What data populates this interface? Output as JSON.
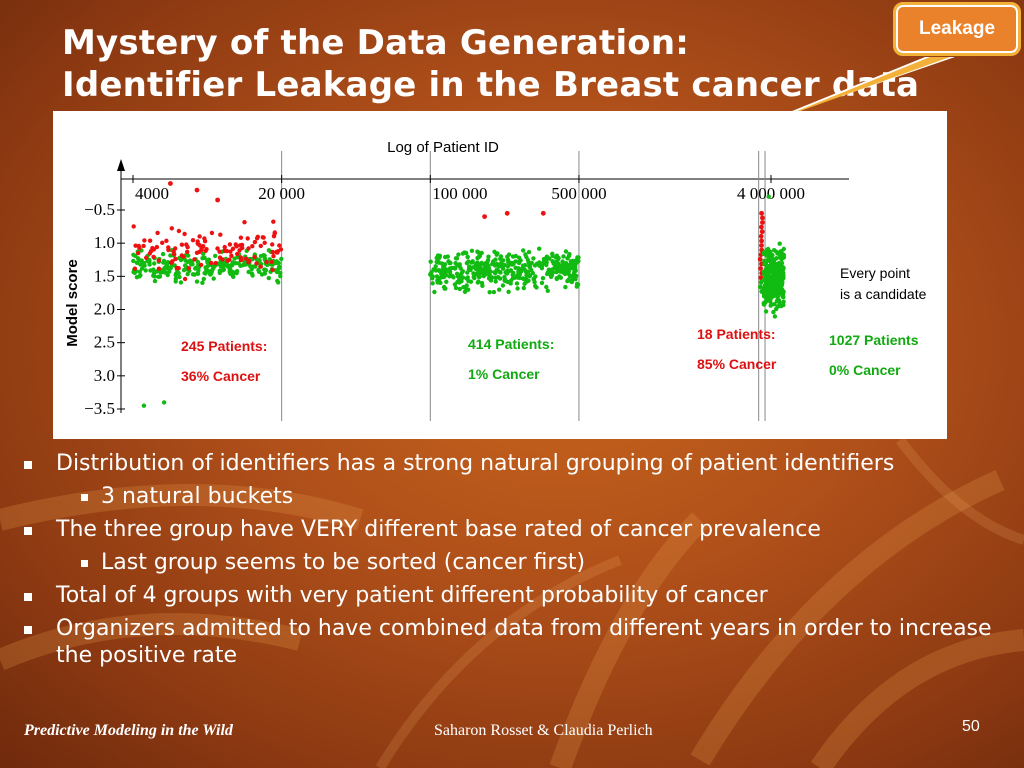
{
  "slide": {
    "title_line1": "Mystery of the Data Generation:",
    "title_line2": "Identifier Leakage in the Breast cancer data",
    "callout": "Leakage",
    "footer_left": "Predictive Modeling in the Wild",
    "footer_center": "Saharon Rosset & Claudia Perlich",
    "page_number": "50"
  },
  "bullets": [
    {
      "level": 1,
      "text": "Distribution of identifiers has a strong natural grouping of patient identifiers"
    },
    {
      "level": 2,
      "text": "3 natural buckets"
    },
    {
      "level": 1,
      "text": "The three group have VERY different base rated of cancer prevalence"
    },
    {
      "level": 2,
      "text": "Last group seems to be sorted (cancer first)"
    },
    {
      "level": 1,
      "text": "Total of 4 groups with very patient different probability of cancer"
    },
    {
      "level": 1,
      "text": "Organizers admitted to have combined data from different years in order to increase the positive rate"
    }
  ],
  "chart_data": {
    "type": "scatter",
    "title": "Log of  Patient ID",
    "ylabel": "Model score",
    "x_scale": "log",
    "x_ticks": [
      "4000",
      "20 000",
      "100 000",
      "500 000",
      "4 000 000"
    ],
    "y_ticks": [
      "−0.5",
      "1.0",
      "1.5",
      "2.0",
      "2.5",
      "3.0",
      "−3.5"
    ],
    "colors": {
      "cancer": "#ee1111",
      "non_cancer": "#11bb11",
      "axis": "#000000"
    },
    "groups": [
      {
        "label": "245 Patients:",
        "rate": "36% Cancer",
        "patients": 245,
        "cancer_fraction": 0.36,
        "id_range": [
          4000,
          20000
        ],
        "label_color": "#dd1111"
      },
      {
        "label": "414 Patients:",
        "rate": "1% Cancer",
        "patients": 414,
        "cancer_fraction": 0.01,
        "id_range": [
          100000,
          500000
        ],
        "label_color": "#11aa11"
      },
      {
        "label": "18 Patients:",
        "rate": "85% Cancer",
        "patients": 18,
        "cancer_fraction": 0.85,
        "id_range": [
          3500000,
          3700000
        ],
        "label_color": "#dd1111"
      },
      {
        "label": "1027 Patients",
        "rate": "0% Cancer",
        "patients": 1027,
        "cancer_fraction": 0.0,
        "id_range": [
          3700000,
          4600000
        ],
        "label_color": "#11aa11"
      }
    ],
    "annotation": [
      "Every point",
      "is a candidate"
    ]
  }
}
